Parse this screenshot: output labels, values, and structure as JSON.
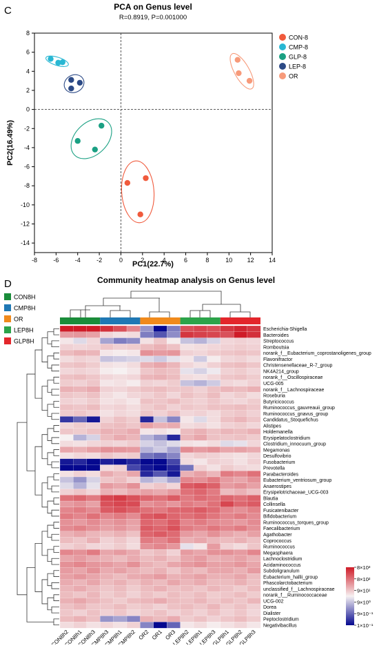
{
  "colors": {
    "con": "#f05a3c",
    "cmp": "#29b7d3",
    "glp": "#1aa083",
    "lep": "#2c4a86",
    "or": "#f79a7a",
    "bar_con": "#1a8c3a",
    "bar_cmp": "#1f78b4",
    "bar_or": "#f08a1c",
    "bar_lep": "#2ca34a",
    "bar_glp": "#e3262b",
    "hm_low": "#05088f",
    "hm_mid": "#f6f1f2",
    "hm_high": "#cf1b27"
  },
  "chart_data": [
    {
      "type": "scatter",
      "panel_letter": "C",
      "title": "PCA on Genus level",
      "subtitle": "R=0.8919, P=0.001000",
      "xlabel": "PC1(22.7%)",
      "ylabel": "PC2(16.49%)",
      "xlim": [
        -8,
        14
      ],
      "ylim": [
        -15,
        8
      ],
      "xticks": [
        -8,
        -6,
        -4,
        -2,
        0,
        2,
        4,
        6,
        8,
        10,
        12,
        14
      ],
      "yticks": [
        -14,
        -12,
        -10,
        -8,
        -6,
        -4,
        -2,
        0,
        2,
        4,
        6,
        8
      ],
      "legend_position": "top-right",
      "series": [
        {
          "name": "CON-8",
          "color": "#f05a3c",
          "points": [
            [
              0.6,
              -7.7
            ],
            [
              2.3,
              -7.2
            ],
            [
              1.8,
              -11.0
            ]
          ]
        },
        {
          "name": "CMP-8",
          "color": "#29b7d3",
          "points": [
            [
              -6.5,
              5.3
            ],
            [
              -5.8,
              4.9
            ],
            [
              -5.4,
              4.95
            ]
          ]
        },
        {
          "name": "GLP-8",
          "color": "#1aa083",
          "points": [
            [
              -4.0,
              -3.3
            ],
            [
              -1.8,
              -1.7
            ],
            [
              -2.4,
              -4.2
            ]
          ]
        },
        {
          "name": "LEP-8",
          "color": "#2c4a86",
          "points": [
            [
              -4.6,
              3.1
            ],
            [
              -3.8,
              2.8
            ],
            [
              -4.6,
              2.2
            ]
          ]
        },
        {
          "name": "OR",
          "color": "#f79a7a",
          "points": [
            [
              10.8,
              5.2
            ],
            [
              10.9,
              3.8
            ],
            [
              11.9,
              3.0
            ]
          ]
        }
      ]
    },
    {
      "type": "heatmap",
      "panel_letter": "D",
      "title": "Community heatmap analysis on Genus level",
      "legend_position": "top-left",
      "groups": [
        {
          "name": "CON8H",
          "color": "#1a8c3a"
        },
        {
          "name": "CMP8H",
          "color": "#1f78b4"
        },
        {
          "name": "OR",
          "color": "#f08a1c"
        },
        {
          "name": "LEP8H",
          "color": "#2ca34a"
        },
        {
          "name": "GLP8H",
          "color": "#e3262b"
        }
      ],
      "columns": [
        "CON8h2",
        "CON8h1",
        "CON8h3",
        "CMP8h3",
        "CMP8h1",
        "CMP8h2",
        "OR2",
        "OR1",
        "OR3",
        "LEP8h2",
        "LEP8h1",
        "LEP8h3",
        "GLP8h1",
        "GLP8h2",
        "GLP8h3"
      ],
      "rows": [
        "Escherichia-Shigella",
        "Bacteroides",
        "Streptococcus",
        "Romboutsia",
        "norank_f__Eubacterium_coprostanoligenes_group",
        "Flavonifractor",
        "Christensenellaceae_R-7_group",
        "NK4A214_group",
        "norank_f__Oscillospiraceae",
        "UCG-005",
        "norank_f__Lachnospiraceae",
        "Roseburia",
        "Butyricicoccus",
        "Ruminococcus_gauvreauii_group",
        "Ruminococcus_gnavus_group",
        "Candidatus_Stoquefichus",
        "Alistipes",
        "Holdemanella",
        "Erysipelatoclostridium",
        "Clostridium_innocuum_group",
        "Megamonas",
        "Desulfovibrio",
        "Fusobacterium",
        "Prevotella",
        "Parabacteroides",
        "Eubacterium_ventriosum_group",
        "Anaerostipes",
        "Erysipelotrichaceae_UCG-003",
        "Blautia",
        "Collinsella",
        "Fusicatenibacter",
        "Bifidobacterium",
        "Ruminococcus_torques_group",
        "Faecalibacterium",
        "Agathobacter",
        "Coprococcus",
        "Ruminococcus",
        "Megasphaera",
        "Lachnoclostridium",
        "Acidaminococcus",
        "Subdoligranulum",
        "Eubacterium_hallii_group",
        "Phascolarctobacterium",
        "unclassified_f__Lachnospiraceae",
        "norank_f__Ruminococcaceae",
        "UCG-002",
        "Dorea",
        "Dialister",
        "Peptoclostridium",
        "Negativibacillus"
      ],
      "colorbar_labels": [
        "8×10³",
        "8×10²",
        "9×10¹",
        "9×10⁰",
        "9×10⁻¹",
        "1×10⁻¹"
      ],
      "values": [
        [
          4.0,
          4.0,
          4.0,
          3.6,
          3.0,
          2.0,
          -1.2,
          -3.0,
          -1.5,
          3.0,
          3.2,
          3.0,
          3.5,
          3.8,
          3.5
        ],
        [
          1.6,
          1.7,
          1.5,
          0.5,
          0.3,
          0.4,
          -1.5,
          -2.0,
          -1.3,
          3.5,
          3.3,
          3.2,
          3.0,
          4.0,
          3.6
        ],
        [
          0.2,
          -0.3,
          0.5,
          -1.0,
          -1.5,
          -1.3,
          0.3,
          0.8,
          0.1,
          -0.6,
          -0.8,
          -0.4,
          0.5,
          0.6,
          0.5
        ],
        [
          0.6,
          0.5,
          0.6,
          0.8,
          0.6,
          0.7,
          1.0,
          1.2,
          0.9,
          0.3,
          0.4,
          0.5,
          0.6,
          0.7,
          0.6
        ],
        [
          1.0,
          1.2,
          1.1,
          0.2,
          0.1,
          0.2,
          1.8,
          1.6,
          1.7,
          0.6,
          0.5,
          0.7,
          0.8,
          0.9,
          0.8
        ],
        [
          0.4,
          0.6,
          0.5,
          -0.6,
          -0.5,
          -0.4,
          -0.3,
          -0.5,
          -0.2,
          0.2,
          -0.5,
          0.1,
          0.5,
          0.6,
          0.4
        ],
        [
          0.8,
          0.9,
          0.7,
          0.3,
          0.2,
          0.4,
          1.2,
          1.4,
          1.1,
          0.5,
          0.3,
          0.6,
          0.9,
          1.0,
          0.8
        ],
        [
          0.5,
          0.6,
          0.5,
          0.1,
          0.0,
          0.2,
          0.8,
          1.0,
          0.9,
          -0.2,
          -0.4,
          -0.1,
          0.6,
          0.7,
          0.5
        ],
        [
          0.9,
          1.0,
          0.8,
          0.5,
          0.4,
          0.5,
          1.1,
          1.2,
          1.0,
          0.4,
          0.3,
          0.5,
          0.8,
          0.9,
          0.7
        ],
        [
          0.7,
          0.6,
          0.8,
          0.2,
          0.3,
          0.1,
          0.6,
          0.5,
          0.7,
          -0.6,
          -0.8,
          -0.5,
          0.5,
          0.4,
          0.6
        ],
        [
          1.2,
          1.1,
          1.3,
          0.6,
          0.5,
          0.7,
          0.9,
          1.0,
          0.8,
          0.8,
          0.6,
          0.9,
          1.1,
          1.0,
          1.2
        ],
        [
          0.8,
          0.7,
          0.9,
          0.4,
          0.2,
          0.5,
          0.6,
          0.8,
          0.5,
          0.9,
          0.7,
          1.0,
          0.5,
          0.7,
          0.4
        ],
        [
          0.6,
          0.5,
          0.7,
          0.3,
          0.4,
          0.2,
          0.9,
          0.8,
          1.0,
          0.7,
          0.6,
          0.8,
          0.6,
          0.5,
          0.7
        ],
        [
          0.9,
          0.8,
          1.0,
          0.5,
          0.6,
          0.4,
          0.7,
          0.9,
          0.6,
          0.8,
          0.7,
          0.9,
          0.9,
          1.0,
          0.8
        ],
        [
          0.7,
          0.8,
          0.6,
          0.3,
          0.5,
          0.4,
          0.8,
          0.6,
          0.9,
          0.5,
          0.6,
          0.4,
          0.7,
          0.8,
          0.6
        ],
        [
          -2.4,
          -1.8,
          -2.8,
          0.6,
          0.9,
          0.7,
          -2.6,
          -0.6,
          -1.4,
          0.2,
          -0.3,
          0.4,
          0.9,
          1.1,
          0.8
        ],
        [
          0.5,
          0.7,
          0.6,
          0.9,
          1.0,
          0.8,
          1.5,
          1.2,
          1.3,
          0.4,
          0.5,
          0.3,
          0.6,
          0.7,
          0.5
        ],
        [
          0.8,
          0.7,
          0.9,
          1.2,
          1.1,
          1.3,
          0.2,
          0.3,
          0.1,
          1.0,
          1.2,
          0.9,
          1.1,
          1.0,
          1.2
        ],
        [
          0.0,
          -0.8,
          -0.4,
          1.0,
          1.3,
          1.1,
          -0.8,
          -1.2,
          -2.6,
          1.1,
          1.4,
          0.9,
          0.8,
          0.9,
          0.7
        ],
        [
          0.4,
          0.3,
          0.5,
          0.6,
          0.5,
          0.7,
          -0.4,
          -0.6,
          -0.3,
          0.3,
          0.2,
          0.4,
          -0.3,
          -0.2,
          0.5
        ],
        [
          1.4,
          1.2,
          1.5,
          1.8,
          1.7,
          1.6,
          -0.8,
          -0.5,
          -1.0,
          1.9,
          1.6,
          1.8,
          1.4,
          1.5,
          1.3
        ],
        [
          0.3,
          0.5,
          0.4,
          0.8,
          0.6,
          0.7,
          -1.6,
          -1.8,
          -1.4,
          0.5,
          0.7,
          0.6,
          0.4,
          0.3,
          0.5
        ],
        [
          -2.8,
          -2.6,
          -3.0,
          -2.7,
          -2.9,
          -2.6,
          -3.0,
          -3.0,
          -2.2,
          0.4,
          0.2,
          0.6,
          0.5,
          0.3,
          0.6
        ],
        [
          -3.2,
          -3.0,
          -3.0,
          0.4,
          0.6,
          -2.2,
          -2.8,
          -3.0,
          -2.6,
          -1.6,
          0.6,
          0.3,
          0.7,
          0.5,
          0.4
        ],
        [
          0.3,
          0.6,
          0.4,
          1.3,
          1.0,
          1.4,
          -2.6,
          -2.0,
          -2.8,
          1.2,
          1.5,
          1.1,
          2.2,
          2.0,
          2.4
        ],
        [
          -0.6,
          -1.2,
          -0.4,
          0.8,
          1.0,
          0.6,
          -0.8,
          -0.5,
          -1.0,
          2.0,
          1.8,
          2.2,
          1.6,
          1.4,
          1.8
        ],
        [
          -0.3,
          -0.8,
          -0.2,
          1.6,
          1.4,
          1.8,
          0.6,
          0.8,
          0.5,
          2.8,
          3.0,
          2.7,
          1.6,
          1.8,
          1.5
        ],
        [
          0.6,
          0.8,
          0.5,
          1.2,
          1.0,
          1.3,
          1.5,
          1.3,
          1.6,
          2.4,
          2.6,
          2.2,
          1.0,
          1.2,
          0.9
        ],
        [
          2.4,
          2.6,
          2.2,
          3.2,
          3.4,
          3.0,
          2.6,
          2.4,
          2.8,
          2.2,
          2.5,
          2.3,
          2.6,
          2.4,
          2.7
        ],
        [
          1.6,
          1.8,
          1.5,
          3.0,
          3.2,
          3.1,
          1.8,
          2.0,
          1.7,
          2.2,
          2.0,
          2.4,
          3.2,
          2.6,
          2.8
        ],
        [
          2.0,
          2.2,
          1.9,
          2.8,
          3.0,
          2.7,
          2.4,
          2.2,
          2.6,
          2.6,
          2.8,
          2.5,
          2.0,
          1.8,
          2.1
        ],
        [
          2.2,
          2.0,
          2.4,
          2.0,
          2.2,
          1.9,
          2.8,
          3.0,
          2.6,
          2.4,
          2.6,
          2.3,
          2.0,
          2.2,
          1.9
        ],
        [
          1.8,
          1.6,
          1.9,
          1.6,
          1.8,
          1.5,
          2.6,
          2.4,
          2.8,
          2.0,
          2.2,
          1.9,
          1.8,
          1.6,
          1.9
        ],
        [
          1.9,
          2.1,
          1.8,
          1.5,
          1.7,
          1.4,
          2.8,
          2.6,
          3.0,
          2.2,
          2.0,
          2.3,
          2.0,
          2.2,
          1.8
        ],
        [
          1.2,
          1.4,
          1.1,
          1.0,
          1.2,
          0.9,
          2.6,
          2.8,
          2.5,
          1.6,
          1.4,
          1.8,
          1.4,
          1.2,
          1.5
        ],
        [
          1.0,
          0.8,
          1.2,
          0.6,
          0.8,
          0.5,
          2.2,
          2.0,
          2.4,
          1.2,
          1.4,
          1.1,
          1.0,
          1.2,
          0.9
        ],
        [
          0.6,
          0.8,
          0.5,
          0.5,
          0.7,
          0.4,
          1.8,
          2.0,
          1.7,
          -0.2,
          0.2,
          1.6,
          0.6,
          0.4,
          0.8
        ],
        [
          2.0,
          1.8,
          2.2,
          1.4,
          1.6,
          1.3,
          0.8,
          1.0,
          0.6,
          1.6,
          1.4,
          1.8,
          1.8,
          1.6,
          2.0
        ],
        [
          1.4,
          1.6,
          1.3,
          1.2,
          1.0,
          1.3,
          1.0,
          1.2,
          0.9,
          1.4,
          1.6,
          1.2,
          1.3,
          1.5,
          1.2
        ],
        [
          1.8,
          2.0,
          1.7,
          1.6,
          1.4,
          1.8,
          1.2,
          1.0,
          1.4,
          1.6,
          1.8,
          1.5,
          1.5,
          1.7,
          1.4
        ],
        [
          1.6,
          1.4,
          1.8,
          1.3,
          1.5,
          1.2,
          1.0,
          1.2,
          0.8,
          1.2,
          1.0,
          1.4,
          1.4,
          1.2,
          1.6
        ],
        [
          1.5,
          1.7,
          1.4,
          1.2,
          1.0,
          1.3,
          1.4,
          1.6,
          1.2,
          1.3,
          1.5,
          1.2,
          1.2,
          1.4,
          1.0
        ],
        [
          1.3,
          1.1,
          1.4,
          1.0,
          1.2,
          0.9,
          1.2,
          1.0,
          1.4,
          1.1,
          1.3,
          1.0,
          1.0,
          1.2,
          0.9
        ],
        [
          1.1,
          1.3,
          1.0,
          0.8,
          1.0,
          0.7,
          1.0,
          1.2,
          0.9,
          1.0,
          0.8,
          1.1,
          0.9,
          0.7,
          1.0
        ],
        [
          1.0,
          0.8,
          1.1,
          0.7,
          0.9,
          0.6,
          0.9,
          0.7,
          1.0,
          0.8,
          1.0,
          0.7,
          0.8,
          1.0,
          0.7
        ],
        [
          1.2,
          1.4,
          1.1,
          0.9,
          0.7,
          1.0,
          1.1,
          1.3,
          1.0,
          0.9,
          1.1,
          0.8,
          1.0,
          0.8,
          1.1
        ],
        [
          0.9,
          1.1,
          0.8,
          0.8,
          1.0,
          0.7,
          0.8,
          0.6,
          0.9,
          1.0,
          0.8,
          1.1,
          0.7,
          0.9,
          0.6
        ],
        [
          0.8,
          0.6,
          0.9,
          0.6,
          0.8,
          0.5,
          0.7,
          0.9,
          0.6,
          0.8,
          0.6,
          0.9,
          0.6,
          0.8,
          0.5
        ],
        [
          1.0,
          1.2,
          0.9,
          -1.2,
          -1.0,
          -1.4,
          1.2,
          1.0,
          1.3,
          0.7,
          0.9,
          0.6,
          0.8,
          1.0,
          0.7
        ],
        [
          0.4,
          0.6,
          0.3,
          0.5,
          0.3,
          0.6,
          -1.4,
          -3.0,
          -1.8,
          0.2,
          0.4,
          0.1,
          0.3,
          0.5,
          0.2
        ]
      ]
    }
  ]
}
